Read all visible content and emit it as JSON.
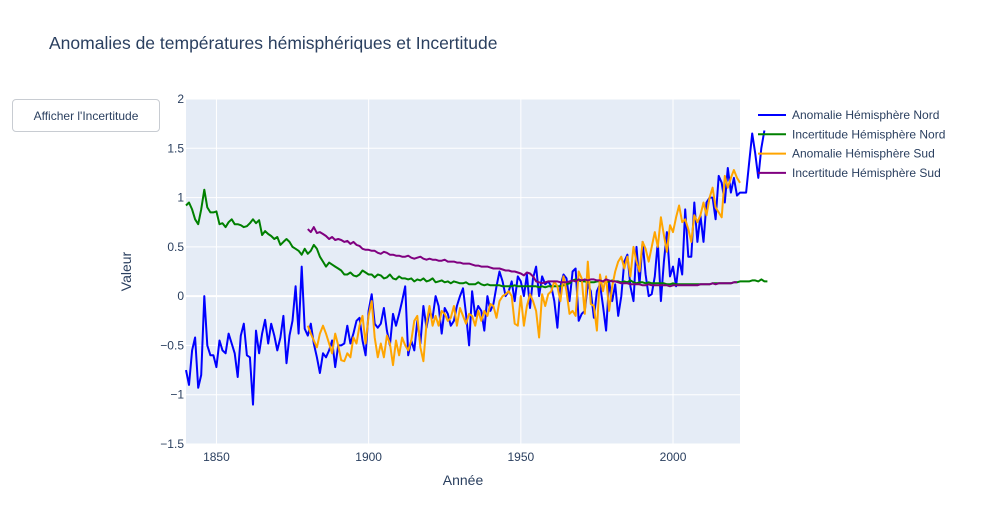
{
  "page": {
    "title": "Anomalies de températures hémisphériques et Incertitude",
    "button_label": "Afficher l'Incertitude"
  },
  "chart_data": {
    "type": "line",
    "title": "Anomalies de températures hémisphériques et Incertitude",
    "xlabel": "Année",
    "ylabel": "Valeur",
    "xlim": [
      1840,
      2022
    ],
    "ylim": [
      -1.5,
      2
    ],
    "x_ticks": [
      1850,
      1900,
      1950,
      2000
    ],
    "x_tick_labels": [
      "1850",
      "1900",
      "1950",
      "2000"
    ],
    "y_ticks": [
      -1.5,
      -1,
      -0.5,
      0,
      0.5,
      1,
      1.5,
      2
    ],
    "y_tick_labels": [
      "−1.5",
      "−1",
      "−0.5",
      "0",
      "0.5",
      "1",
      "1.5",
      "2"
    ],
    "grid": true,
    "legend_position": "right",
    "series": [
      {
        "name": "Anomalie Hémisphère Nord",
        "color": "#0000ff",
        "x_start": 1840,
        "values": [
          -0.75,
          -0.9,
          -0.55,
          -0.42,
          -0.93,
          -0.8,
          0.0,
          -0.5,
          -0.6,
          -0.6,
          -0.72,
          -0.45,
          -0.55,
          -0.58,
          -0.38,
          -0.48,
          -0.58,
          -0.82,
          -0.4,
          -0.28,
          -0.6,
          -0.62,
          -1.1,
          -0.35,
          -0.58,
          -0.38,
          -0.24,
          -0.48,
          -0.28,
          -0.4,
          -0.55,
          -0.42,
          -0.2,
          -0.68,
          -0.4,
          -0.25,
          0.1,
          -0.38,
          0.3,
          -0.33,
          -0.4,
          -0.28,
          -0.48,
          -0.62,
          -0.78,
          -0.58,
          -0.62,
          -0.55,
          -0.45,
          -0.72,
          -0.5,
          -0.5,
          -0.48,
          -0.3,
          -0.48,
          -0.38,
          -0.25,
          -0.22,
          -0.45,
          -0.6,
          -0.15,
          0.02,
          -0.28,
          -0.32,
          -0.28,
          -0.12,
          -0.35,
          -0.5,
          -0.18,
          -0.3,
          -0.18,
          -0.05,
          0.1,
          -0.6,
          -0.45,
          -0.55,
          -0.25,
          -0.48,
          -0.1,
          -0.32,
          -0.15,
          -0.22,
          0.0,
          -0.1,
          -0.38,
          -0.12,
          -0.18,
          -0.3,
          -0.25,
          -0.1,
          0.0,
          0.08,
          -0.18,
          -0.5,
          0.05,
          -0.2,
          -0.1,
          -0.15,
          -0.35,
          0.0,
          -0.15,
          -0.08,
          0.1,
          0.25,
          0.15,
          0.0,
          0.05,
          0.15,
          -0.05,
          0.2,
          0.15,
          0.0,
          0.22,
          -0.12,
          0.18,
          0.3,
          0.0,
          0.2,
          0.12,
          0.15,
          0.1,
          -0.05,
          -0.32,
          0.1,
          0.22,
          0.18,
          -0.05,
          0.25,
          0.28,
          -0.25,
          -0.18,
          -0.15,
          0.12,
          0.05,
          -0.22,
          0.05,
          0.12,
          -0.1,
          -0.35,
          0.15,
          -0.05,
          0.12,
          -0.2,
          0.0,
          0.35,
          0.42,
          0.1,
          -0.05,
          0.5,
          0.12,
          0.55,
          0.22,
          0.0,
          0.02,
          0.2,
          0.55,
          -0.05,
          0.35,
          0.65,
          0.2,
          0.3,
          0.1,
          0.38,
          0.22,
          0.88,
          0.4,
          0.4,
          0.95,
          0.55,
          0.82,
          0.55,
          0.95,
          1.0,
          1.0,
          0.78,
          1.22,
          1.15,
          0.95,
          1.3,
          1.05,
          1.2,
          1.02,
          1.05,
          1.05,
          1.05,
          1.35,
          1.65,
          1.45,
          1.2,
          1.5,
          1.68
        ]
      },
      {
        "name": "Incertitude Hémisphère Nord",
        "color": "#008000",
        "x_start": 1840,
        "values": [
          0.92,
          0.95,
          0.88,
          0.78,
          0.73,
          0.88,
          1.08,
          0.9,
          0.85,
          0.85,
          0.86,
          0.73,
          0.74,
          0.7,
          0.75,
          0.78,
          0.73,
          0.73,
          0.72,
          0.7,
          0.71,
          0.74,
          0.78,
          0.74,
          0.77,
          0.62,
          0.66,
          0.63,
          0.61,
          0.58,
          0.6,
          0.52,
          0.55,
          0.58,
          0.55,
          0.5,
          0.48,
          0.46,
          0.42,
          0.48,
          0.43,
          0.46,
          0.52,
          0.48,
          0.4,
          0.35,
          0.3,
          0.34,
          0.32,
          0.3,
          0.28,
          0.26,
          0.22,
          0.22,
          0.24,
          0.21,
          0.2,
          0.22,
          0.26,
          0.24,
          0.22,
          0.22,
          0.19,
          0.22,
          0.21,
          0.18,
          0.19,
          0.22,
          0.18,
          0.17,
          0.2,
          0.18,
          0.18,
          0.17,
          0.18,
          0.15,
          0.17,
          0.16,
          0.18,
          0.15,
          0.16,
          0.18,
          0.14,
          0.15,
          0.16,
          0.14,
          0.15,
          0.13,
          0.15,
          0.14,
          0.13,
          0.13,
          0.14,
          0.12,
          0.12,
          0.12,
          0.14,
          0.12,
          0.11,
          0.12,
          0.11,
          0.11,
          0.11,
          0.11,
          0.1,
          0.1,
          0.1,
          0.1,
          0.11,
          0.1,
          0.1,
          0.1,
          0.1,
          0.1,
          0.1,
          0.1,
          0.09,
          0.1,
          0.09,
          0.1,
          0.1,
          0.1,
          0.1,
          0.1,
          0.11,
          0.12,
          0.13,
          0.16,
          0.17,
          0.16,
          0.15,
          0.15,
          0.14,
          0.14,
          0.14,
          0.15,
          0.15,
          0.15,
          0.14,
          0.15,
          0.16,
          0.15,
          0.15,
          0.14,
          0.15,
          0.14,
          0.16,
          0.14,
          0.13,
          0.14,
          0.14,
          0.13,
          0.14,
          0.13,
          0.13,
          0.13,
          0.13,
          0.13,
          0.12,
          0.12,
          0.13,
          0.12,
          0.12,
          0.12,
          0.12,
          0.12,
          0.12,
          0.12,
          0.12,
          0.12,
          0.12,
          0.12,
          0.12,
          0.13,
          0.13,
          0.13,
          0.13,
          0.13,
          0.13,
          0.13,
          0.14,
          0.14,
          0.15,
          0.15,
          0.15,
          0.15,
          0.16,
          0.16,
          0.15,
          0.17,
          0.15,
          0.15
        ]
      },
      {
        "name": "Anomalie Hémisphère Sud",
        "color": "#ffa500",
        "x_start": 1880,
        "values": [
          -0.3,
          -0.38,
          -0.45,
          -0.52,
          -0.38,
          -0.3,
          -0.38,
          -0.48,
          -0.58,
          -0.38,
          -0.5,
          -0.65,
          -0.66,
          -0.58,
          -0.62,
          -0.42,
          -0.48,
          -0.3,
          -0.2,
          -0.48,
          -0.2,
          -0.05,
          -0.42,
          -0.62,
          -0.48,
          -0.62,
          -0.4,
          -0.48,
          -0.7,
          -0.45,
          -0.6,
          -0.42,
          -0.5,
          -0.55,
          -0.45,
          -0.25,
          -0.2,
          -0.52,
          -0.66,
          -0.28,
          -0.1,
          -0.3,
          -0.2,
          -0.3,
          -0.15,
          -0.18,
          -0.25,
          -0.22,
          -0.1,
          -0.3,
          -0.12,
          -0.2,
          -0.28,
          -0.18,
          -0.2,
          -0.3,
          -0.15,
          -0.25,
          -0.15,
          -0.2,
          -0.08,
          -0.1,
          -0.22,
          -0.05,
          0.0,
          0.02,
          0.05,
          0.0,
          -0.28,
          -0.3,
          0.0,
          -0.3,
          -0.1,
          0.02,
          -0.05,
          -0.15,
          -0.42,
          0.02,
          -0.1,
          0.02,
          0.05,
          0.15,
          0.1,
          -0.05,
          0.2,
          0.05,
          -0.18,
          -0.15,
          -0.2,
          0.25,
          0.18,
          -0.18,
          0.35,
          -0.08,
          -0.1,
          -0.35,
          0.22,
          0.05,
          0.2,
          -0.15,
          0.1,
          0.25,
          0.35,
          0.4,
          0.28,
          0.4,
          0.2,
          0.5,
          0.35,
          0.25,
          0.55,
          0.48,
          0.35,
          0.5,
          0.65,
          0.5,
          0.8,
          0.62,
          0.45,
          0.72,
          0.65,
          0.8,
          0.92,
          0.75,
          0.78,
          0.68,
          0.55,
          0.82,
          0.75,
          0.82,
          0.95,
          0.82,
          1.0,
          1.1,
          0.9,
          0.85,
          0.8,
          1.22,
          1.1,
          1.2,
          1.28,
          1.2,
          1.15
        ]
      },
      {
        "name": "Incertitude Hémisphère Sud",
        "color": "#800080",
        "x_start": 1880,
        "values": [
          0.68,
          0.65,
          0.7,
          0.64,
          0.65,
          0.63,
          0.61,
          0.58,
          0.6,
          0.57,
          0.58,
          0.57,
          0.55,
          0.56,
          0.53,
          0.55,
          0.52,
          0.51,
          0.48,
          0.47,
          0.47,
          0.46,
          0.46,
          0.44,
          0.43,
          0.45,
          0.44,
          0.42,
          0.42,
          0.41,
          0.41,
          0.4,
          0.4,
          0.41,
          0.39,
          0.38,
          0.39,
          0.4,
          0.38,
          0.37,
          0.38,
          0.37,
          0.37,
          0.36,
          0.36,
          0.37,
          0.35,
          0.35,
          0.35,
          0.34,
          0.34,
          0.33,
          0.33,
          0.33,
          0.32,
          0.31,
          0.31,
          0.3,
          0.3,
          0.3,
          0.29,
          0.28,
          0.28,
          0.28,
          0.27,
          0.26,
          0.26,
          0.25,
          0.25,
          0.24,
          0.23,
          0.21,
          0.24,
          0.23,
          0.2,
          0.15,
          0.14,
          0.13,
          0.14,
          0.15,
          0.15,
          0.15,
          0.15,
          0.14,
          0.14,
          0.14,
          0.15,
          0.16,
          0.15,
          0.17,
          0.16,
          0.17,
          0.16,
          0.17,
          0.17,
          0.16,
          0.16,
          0.15,
          0.17,
          0.16,
          0.15,
          0.15,
          0.14,
          0.13,
          0.13,
          0.13,
          0.12,
          0.12,
          0.12,
          0.12,
          0.11,
          0.11,
          0.12,
          0.11,
          0.11,
          0.11,
          0.11,
          0.11,
          0.11,
          0.1,
          0.11,
          0.11,
          0.11,
          0.11,
          0.11,
          0.11,
          0.11,
          0.11,
          0.11,
          0.12,
          0.12,
          0.12,
          0.12,
          0.13,
          0.12,
          0.13,
          0.13,
          0.13,
          0.13,
          0.13,
          0.14,
          0.14
        ]
      }
    ]
  }
}
